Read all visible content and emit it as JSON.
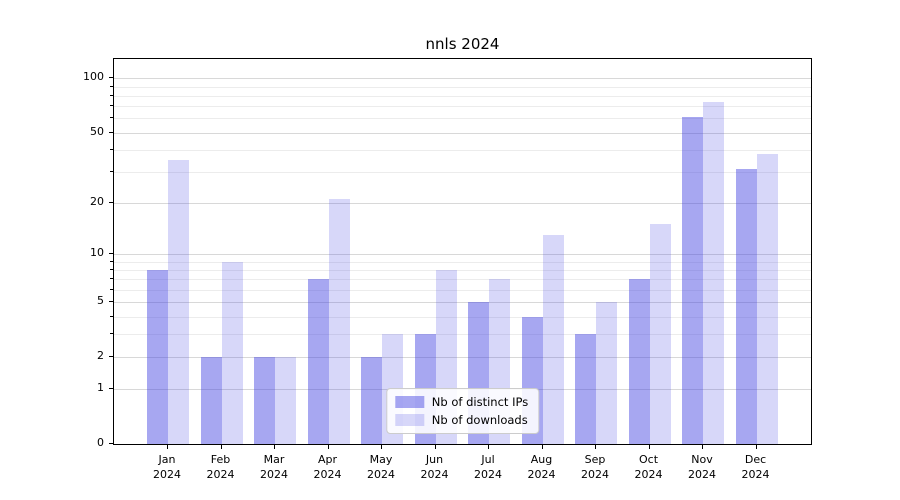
{
  "title": "nnls 2024",
  "chart_data": {
    "type": "bar",
    "title": "nnls 2024",
    "categories": [
      "Jan 2024",
      "Feb 2024",
      "Mar 2024",
      "Apr 2024",
      "May 2024",
      "Jun 2024",
      "Jul 2024",
      "Aug 2024",
      "Sep 2024",
      "Oct 2024",
      "Nov 2024",
      "Dec 2024"
    ],
    "series": [
      {
        "name": "Nb of distinct IPs",
        "color": "rgba(68,68,225,0.47)",
        "values": [
          8,
          2,
          2,
          7,
          2,
          3,
          5,
          4,
          3,
          7,
          61,
          31
        ]
      },
      {
        "name": "Nb of downloads",
        "color": "rgba(68,68,225,0.21)",
        "values": [
          35,
          9,
          2,
          21,
          3,
          8,
          7,
          13,
          5,
          15,
          74,
          38
        ]
      }
    ],
    "xlabel": "",
    "ylabel": "",
    "yscale": "log1p",
    "ylim": [
      0,
      128
    ],
    "y_major_ticks": [
      0,
      1,
      2,
      5,
      10,
      20,
      50,
      100
    ],
    "y_minor_ticks": [
      3,
      4,
      6,
      7,
      8,
      9,
      30,
      40,
      60,
      70,
      80,
      90
    ],
    "grid": true,
    "legend_position": "lower center"
  },
  "colors": {
    "bar_distinct_ips_on_white": "#a8a8f1",
    "bar_downloads_on_white": "#d8d8f8",
    "grid_major": "#d8d8d8",
    "grid_minor": "#ececec",
    "axis": "#000000",
    "background": "#ffffff"
  }
}
